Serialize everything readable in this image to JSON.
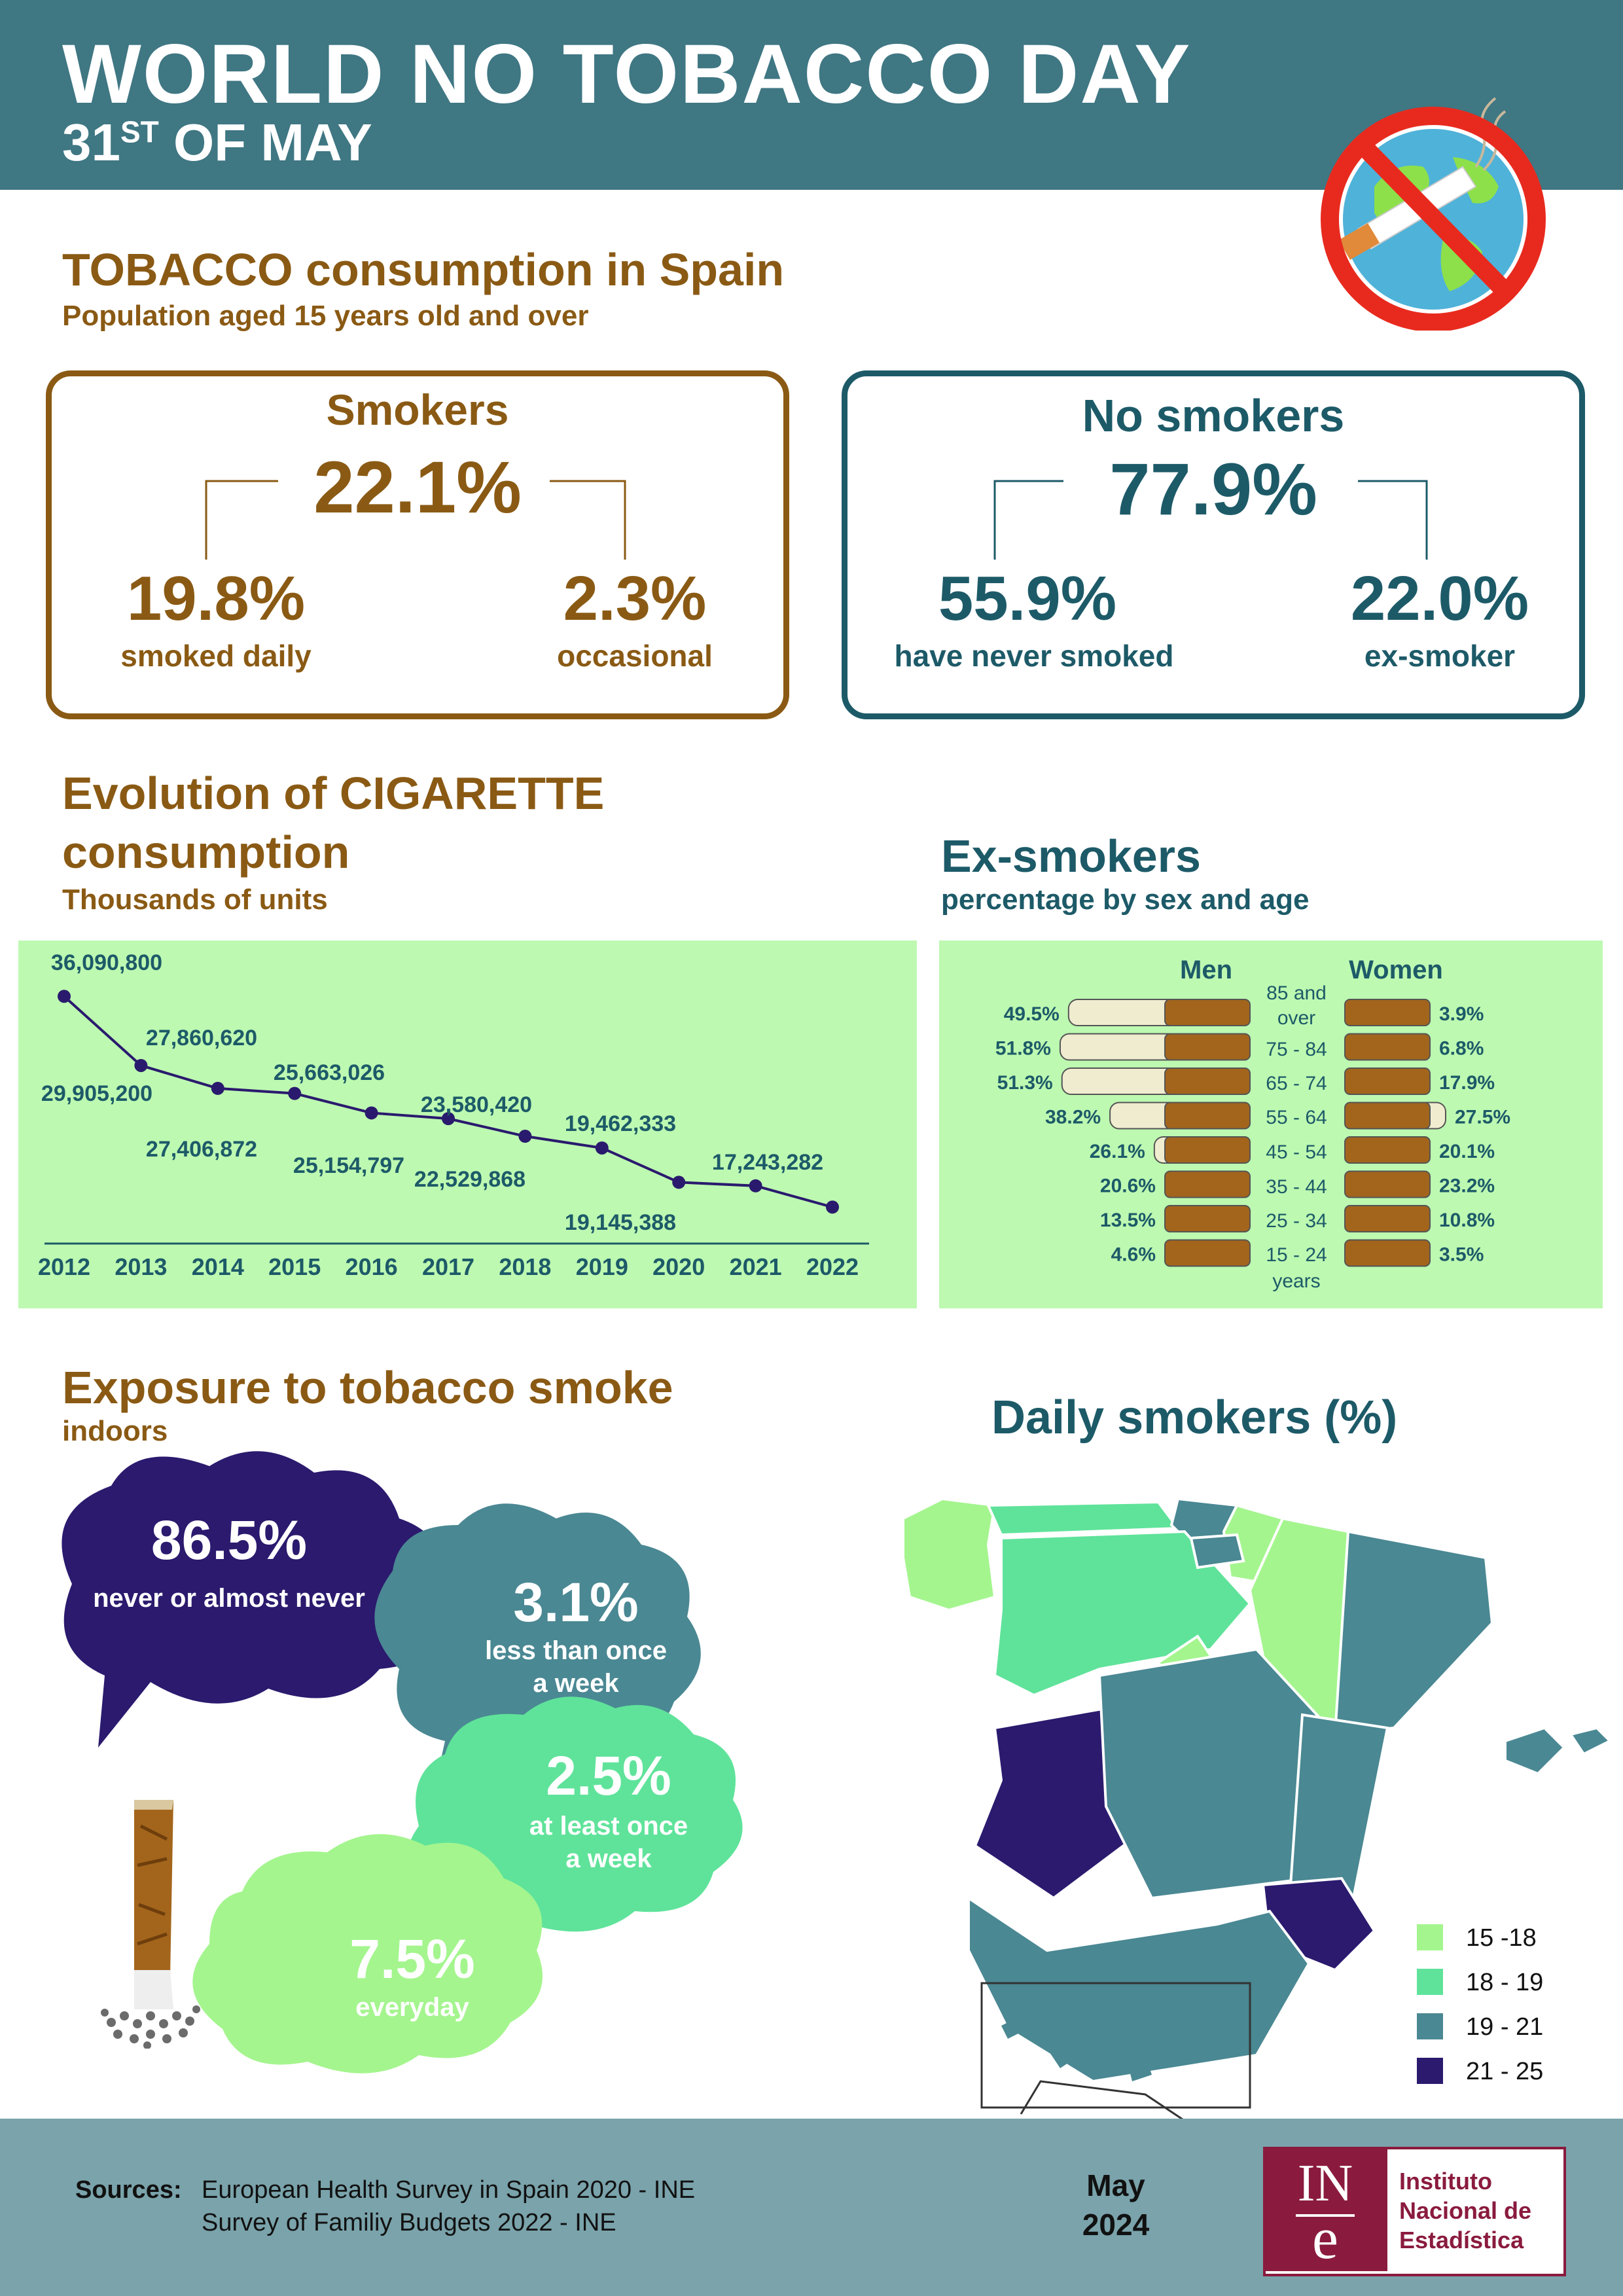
{
  "header": {
    "title": "WORLD NO TOBACCO DAY",
    "subtitle_main": "31",
    "subtitle_sup": "ST",
    "subtitle_rest": " OF MAY",
    "icon": "no-smoking-icon"
  },
  "consumption": {
    "title": "TOBACCO consumption in Spain",
    "subtitle": "Population aged 15 years old and over",
    "smokers": {
      "label": "Smokers",
      "total": "22.1%",
      "daily_value": "19.8%",
      "daily_label": "smoked daily",
      "occasional_value": "2.3%",
      "occasional_label": "occasional"
    },
    "no_smokers": {
      "label": "No smokers",
      "total": "77.9%",
      "never_value": "55.9%",
      "never_label": "have never smoked",
      "ex_value": "22.0%",
      "ex_label": "ex-smoker"
    }
  },
  "evolution": {
    "title_line1": "Evolution of CIGARETTE",
    "title_line2": "consumption",
    "subtitle": "Thousands of units"
  },
  "chart_data": [
    {
      "type": "line",
      "title": "Evolution of CIGARETTE consumption",
      "subtitle": "Thousands of units",
      "x": [
        "2012",
        "2013",
        "2014",
        "2015",
        "2016",
        "2017",
        "2018",
        "2019",
        "2020",
        "2021",
        "2022"
      ],
      "series": [
        {
          "values": [
            36090800,
            29905200,
            27860620,
            27406872,
            25663026,
            25154797,
            23580420,
            22529868,
            19462333,
            19145388,
            17243282
          ]
        }
      ],
      "labels": [
        "36,090,800",
        "29,905,200",
        "27,860,620",
        "27,406,872",
        "25,663,026",
        "25,154,797",
        "23,580,420",
        "22,529,868",
        "19,462,333",
        "19,145,388",
        "17,243,282"
      ],
      "ylim": [
        15000000,
        38000000
      ],
      "grid": false,
      "color": "#2a1a6e"
    },
    {
      "type": "bar",
      "title": "Ex-smokers",
      "subtitle": "percentage by sex and age",
      "categories": [
        "85 and over",
        "75 - 84",
        "65 - 74",
        "55 - 64",
        "45 - 54",
        "35 - 44",
        "25 - 34",
        "15 - 24 years"
      ],
      "series": [
        {
          "name": "Men",
          "values": [
            49.5,
            51.8,
            51.3,
            38.2,
            26.1,
            20.6,
            13.5,
            4.6
          ]
        },
        {
          "name": "Women",
          "values": [
            3.9,
            6.8,
            17.9,
            27.5,
            20.1,
            23.2,
            10.8,
            3.5
          ]
        }
      ],
      "labels_men": [
        "49.5%",
        "51.8%",
        "51.3%",
        "38.2%",
        "26.1%",
        "20.6%",
        "13.5%",
        "4.6%"
      ],
      "labels_women": [
        "3.9%",
        "6.8%",
        "17.9%",
        "27.5%",
        "20.1%",
        "23.2%",
        "10.8%",
        "3.5%"
      ]
    }
  ],
  "exsmokers": {
    "title": "Ex-smokers",
    "subtitle": "percentage by sex and age",
    "men_label": "Men",
    "women_label": "Women",
    "ages": [
      "85 and",
      "over",
      "75 - 84",
      "65 - 74",
      "55 - 64",
      "45 - 54",
      "35 - 44",
      "25 - 34",
      "15 - 24",
      "years"
    ]
  },
  "exposure": {
    "title": "Exposure to tobacco smoke",
    "subtitle": "indoors",
    "items": [
      {
        "value": "86.5%",
        "label": "never or almost never",
        "color": "#2b1a6e"
      },
      {
        "value": "3.1%",
        "label1": "less than once",
        "label2": "a week",
        "color": "#4a8893"
      },
      {
        "value": "2.5%",
        "label1": "at least once",
        "label2": "a week",
        "color": "#5fe39a"
      },
      {
        "value": "7.5%",
        "label": "everyday",
        "color": "#a4f58e"
      }
    ]
  },
  "map": {
    "title": "Daily smokers (%)",
    "legend": [
      {
        "label": "15 -18",
        "color": "#a4f58e"
      },
      {
        "label": "18 - 19",
        "color": "#5fe39a"
      },
      {
        "label": "19 - 21",
        "color": "#4a8893"
      },
      {
        "label": "21 - 25",
        "color": "#2b1a6e"
      }
    ]
  },
  "footer": {
    "sources_label": "Sources:",
    "source1": "European Health Survey in Spain 2020 - INE",
    "source2": "Survey of Familiy Budgets 2022 - INE",
    "month": "May",
    "year": "2024",
    "logo_letters": "INE",
    "org_line1": "Instituto",
    "org_line2": "Nacional de",
    "org_line3": "Estadística"
  }
}
